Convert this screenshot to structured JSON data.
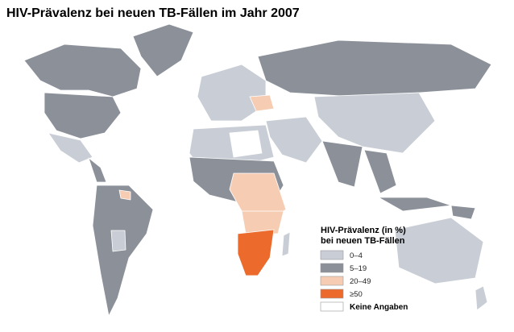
{
  "title": "HIV-Prävalenz bei neuen TB-Fällen im Jahr 2007",
  "legend": {
    "title_lines": [
      "HIV-Prävalenz (in %)",
      "bei neuen TB-Fällen"
    ],
    "items": [
      {
        "label": "0–4",
        "color": "#c9ced6"
      },
      {
        "label": "5–19",
        "color": "#8b9099"
      },
      {
        "label": "20–49",
        "color": "#f6cdb3"
      },
      {
        "label": "≥50",
        "color": "#ec6a2b"
      },
      {
        "label": "Keine Angaben",
        "color": "#ffffff"
      }
    ]
  }
}
